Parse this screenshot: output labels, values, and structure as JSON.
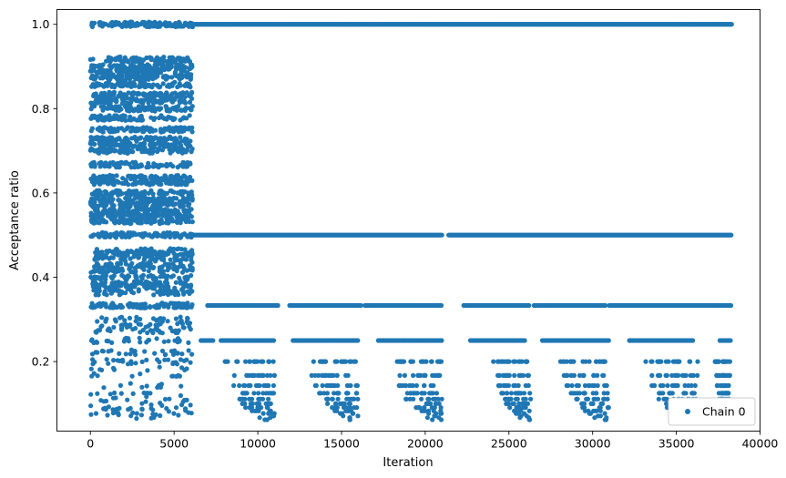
{
  "chart_data": {
    "type": "scatter",
    "title": "",
    "xlabel": "Iteration",
    "ylabel": "Acceptance ratio",
    "xlim": [
      -2000,
      40000
    ],
    "ylim": [
      0.035,
      1.035
    ],
    "x_ticks": [
      0,
      5000,
      10000,
      15000,
      20000,
      25000,
      30000,
      35000,
      40000
    ],
    "x_tick_labels": [
      "0",
      "5000",
      "10000",
      "15000",
      "20000",
      "25000",
      "30000",
      "35000",
      "40000"
    ],
    "y_ticks": [
      0.2,
      0.4,
      0.6,
      0.8,
      1.0
    ],
    "y_tick_labels": [
      "0.2",
      "0.4",
      "0.6",
      "0.8",
      "1.0"
    ],
    "grid": false,
    "legend": {
      "placement": "lower-right",
      "entries": [
        "Chain 0"
      ]
    },
    "color": "#1f77b4",
    "series": [
      {
        "name": "Chain 0",
        "x_range": [
          0,
          38300
        ],
        "description_levels": {
          "early_phase_x": [
            0,
            6100
          ],
          "early_levels": [
            1.0,
            0.917,
            0.9,
            0.889,
            0.875,
            0.857,
            0.833,
            0.818,
            0.8,
            0.778,
            0.75,
            0.727,
            0.714,
            0.7,
            0.667,
            0.636,
            0.625,
            0.6,
            0.583,
            0.571,
            0.556,
            0.545,
            0.533,
            0.5,
            0.462,
            0.455,
            0.444,
            0.429,
            0.417,
            0.4,
            0.385,
            0.375,
            0.364,
            0.333,
            0.3,
            0.286,
            0.273,
            0.25,
            0.222,
            0.2,
            0.182,
            0.167,
            0.143,
            0.125,
            0.111,
            0.1,
            0.091,
            0.083,
            0.077,
            0.071
          ],
          "late_phase_x": [
            6100,
            38300
          ],
          "late_levels": [
            1.0,
            0.5,
            0.333,
            0.25,
            0.2,
            0.167,
            0.143,
            0.125,
            0.111,
            0.1,
            0.091,
            0.083,
            0.077,
            0.071,
            0.067,
            0.062
          ]
        }
      }
    ]
  }
}
